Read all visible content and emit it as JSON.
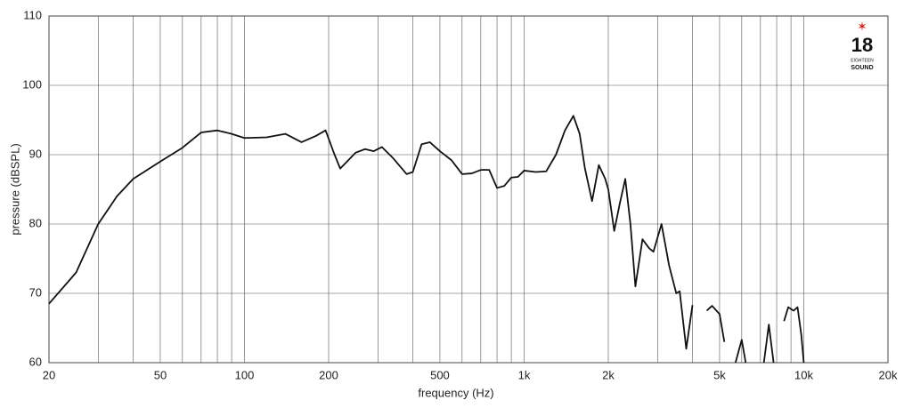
{
  "chart_data": {
    "type": "line",
    "xlabel": "frequency (Hz)",
    "ylabel": "pressure (dBSPL)",
    "logo": {
      "number": "18",
      "line1": "EIGHTEEN",
      "line2": "SOUND"
    },
    "xscale": "log",
    "grid": true,
    "color": "#111111",
    "xlim": [
      20,
      20000
    ],
    "ylim": [
      60,
      110
    ],
    "xticks": [
      20,
      50,
      100,
      200,
      500,
      {
        "value": 1000,
        "label": "1k"
      },
      {
        "value": 2000,
        "label": "2k"
      },
      {
        "value": 5000,
        "label": "5k"
      },
      {
        "value": 10000,
        "label": "10k"
      },
      {
        "value": 20000,
        "label": "20k"
      }
    ],
    "xminor": [
      30,
      40,
      60,
      70,
      80,
      90,
      300,
      400,
      600,
      700,
      800,
      900,
      3000,
      4000,
      6000,
      7000,
      8000,
      9000
    ],
    "yticks": [
      60,
      70,
      80,
      90,
      100,
      110
    ],
    "x": [
      20,
      25,
      30,
      35,
      40,
      50,
      60,
      70,
      80,
      90,
      100,
      120,
      140,
      160,
      180,
      195,
      210,
      220,
      250,
      270,
      290,
      310,
      340,
      380,
      400,
      430,
      460,
      500,
      550,
      600,
      650,
      700,
      750,
      800,
      850,
      900,
      950,
      1000,
      1100,
      1200,
      1300,
      1400,
      1500,
      1580,
      1650,
      1750,
      1850,
      1950,
      2000,
      2100,
      2200,
      2300,
      2400,
      2500,
      2650,
      2800,
      2900,
      3100,
      3300,
      3500,
      3600,
      3800,
      4000,
      4200,
      4500,
      4700,
      5000,
      5200,
      5400,
      5700,
      6000,
      6200,
      6600,
      7200,
      7500,
      7800,
      8200,
      8500,
      8800,
      9200,
      9500,
      9800,
      10000
    ],
    "values": [
      68.5,
      73,
      80,
      84,
      86.5,
      89,
      91,
      93.2,
      93.5,
      93,
      92.4,
      92.5,
      93,
      91.8,
      92.7,
      93.5,
      90,
      88,
      90.3,
      90.8,
      90.5,
      91.1,
      89.5,
      87.2,
      87.5,
      91.5,
      91.8,
      90.5,
      89.2,
      87.2,
      87.3,
      87.8,
      87.8,
      85.2,
      85.5,
      86.7,
      86.8,
      87.7,
      87.5,
      87.6,
      90,
      93.5,
      95.6,
      93,
      88,
      83.3,
      88.5,
      86.5,
      85,
      79,
      83,
      86.5,
      80,
      71,
      77.8,
      76.5,
      76,
      80,
      74,
      70,
      70.3,
      62,
      68.3,
      null,
      67.5,
      68.2,
      67,
      63,
      null,
      60,
      63.3,
      60,
      null,
      60,
      65.5,
      60,
      null,
      66,
      68,
      67.5,
      68,
      64,
      60
    ]
  }
}
